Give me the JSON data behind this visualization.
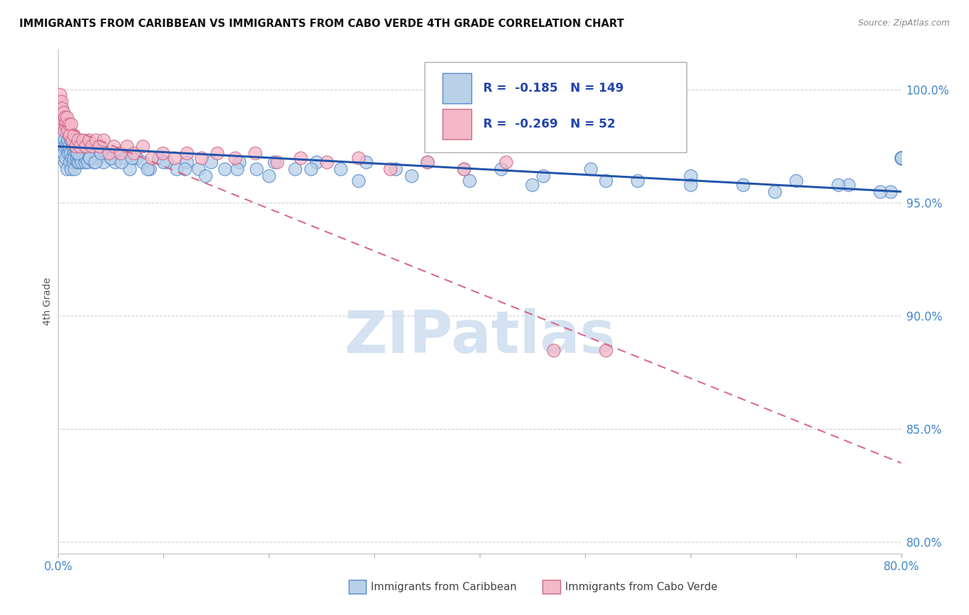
{
  "title": "IMMIGRANTS FROM CARIBBEAN VS IMMIGRANTS FROM CABO VERDE 4TH GRADE CORRELATION CHART",
  "source": "Source: ZipAtlas.com",
  "ylabel": "4th Grade",
  "xlabel_ticks": [
    "0.0%",
    "",
    "",
    "",
    "",
    "",
    "",
    "",
    "80.0%"
  ],
  "xlabel_vals": [
    0.0,
    10.0,
    20.0,
    30.0,
    40.0,
    50.0,
    60.0,
    70.0,
    80.0
  ],
  "ylabel_ticks": [
    "100.0%",
    "95.0%",
    "90.0%",
    "85.0%",
    "80.0%"
  ],
  "ylabel_vals": [
    100.0,
    95.0,
    90.0,
    85.0,
    80.0
  ],
  "xmin": 0.0,
  "xmax": 80.0,
  "ymin": 79.5,
  "ymax": 101.8,
  "legend_labels": [
    "Immigrants from Caribbean",
    "Immigrants from Cabo Verde"
  ],
  "legend_R": [
    -0.185,
    -0.269
  ],
  "legend_N": [
    149,
    52
  ],
  "blue_fill": "#b8d0e8",
  "blue_edge": "#5588cc",
  "pink_fill": "#f4b8c8",
  "pink_edge": "#cc6688",
  "blue_line_color": "#2255aa",
  "pink_line_color": "#dd6688",
  "watermark_text": "ZIPatlas",
  "watermark_color": "#d0dff0",
  "caribbean_x": [
    0.2,
    0.3,
    0.4,
    0.5,
    0.55,
    0.6,
    0.65,
    0.7,
    0.75,
    0.8,
    0.85,
    0.9,
    0.95,
    1.0,
    1.05,
    1.1,
    1.15,
    1.2,
    1.25,
    1.3,
    1.35,
    1.4,
    1.45,
    1.5,
    1.55,
    1.6,
    1.65,
    1.7,
    1.75,
    1.8,
    1.85,
    1.9,
    1.95,
    2.0,
    2.1,
    2.2,
    2.3,
    2.4,
    2.5,
    2.6,
    2.7,
    2.8,
    2.9,
    3.0,
    3.2,
    3.4,
    3.6,
    3.8,
    4.0,
    4.3,
    4.6,
    5.0,
    5.4,
    5.8,
    6.3,
    6.8,
    7.4,
    8.0,
    8.7,
    9.5,
    10.3,
    11.2,
    12.2,
    13.3,
    14.5,
    15.8,
    17.2,
    18.8,
    20.5,
    22.5,
    24.5,
    26.8,
    29.2,
    32.0,
    35.0,
    38.5,
    42.0,
    46.0,
    50.5,
    55.0,
    60.0,
    65.0,
    70.0,
    75.0,
    79.0,
    1.0,
    1.2,
    1.4,
    1.6,
    1.8,
    2.0,
    2.5,
    3.0,
    3.5,
    4.0,
    5.0,
    6.0,
    7.0,
    8.5,
    10.0,
    12.0,
    14.0,
    17.0,
    20.0,
    24.0,
    28.5,
    33.5,
    39.0,
    45.0,
    52.0,
    60.0,
    68.0,
    74.0,
    78.0,
    80.0,
    80.0,
    80.0,
    80.0,
    80.0,
    80.0,
    80.0,
    80.0,
    80.0,
    80.0,
    80.0,
    80.0,
    80.0,
    80.0,
    80.0,
    80.0,
    80.0,
    80.0,
    80.0,
    80.0,
    80.0,
    80.0,
    80.0,
    80.0,
    80.0,
    80.0,
    80.0,
    80.0,
    80.0,
    80.0
  ],
  "caribbean_y": [
    97.8,
    97.5,
    98.0,
    97.2,
    97.8,
    96.8,
    97.5,
    97.0,
    98.2,
    97.5,
    96.5,
    97.8,
    97.2,
    98.0,
    97.5,
    96.8,
    97.2,
    96.5,
    97.8,
    97.0,
    97.5,
    96.8,
    97.2,
    97.0,
    96.5,
    97.8,
    97.2,
    97.5,
    97.0,
    96.8,
    97.2,
    97.5,
    96.8,
    97.2,
    97.0,
    96.8,
    97.2,
    97.5,
    96.8,
    97.0,
    97.5,
    96.8,
    97.2,
    97.0,
    97.5,
    96.8,
    97.2,
    97.0,
    97.5,
    96.8,
    97.2,
    97.0,
    96.8,
    97.2,
    97.0,
    96.5,
    97.0,
    96.8,
    96.5,
    97.0,
    96.8,
    96.5,
    96.8,
    96.5,
    96.8,
    96.5,
    96.8,
    96.5,
    96.8,
    96.5,
    96.8,
    96.5,
    96.8,
    96.5,
    96.8,
    96.5,
    96.5,
    96.2,
    96.5,
    96.0,
    96.2,
    95.8,
    96.0,
    95.8,
    95.5,
    98.2,
    97.8,
    98.0,
    97.5,
    97.2,
    97.8,
    97.5,
    97.0,
    96.8,
    97.2,
    97.0,
    96.8,
    97.0,
    96.5,
    96.8,
    96.5,
    96.2,
    96.5,
    96.2,
    96.5,
    96.0,
    96.2,
    96.0,
    95.8,
    96.0,
    95.8,
    95.5,
    95.8,
    95.5,
    97.0,
    97.0,
    97.0,
    97.0,
    97.0,
    97.0,
    97.0,
    97.0,
    97.0,
    97.0,
    97.0,
    97.0,
    97.0,
    97.0,
    97.0,
    97.0,
    97.0,
    97.0,
    97.0,
    97.0,
    97.0,
    97.0,
    97.0,
    97.0,
    97.0,
    97.0,
    97.0,
    97.0,
    97.0,
    97.0
  ],
  "caboverde_x": [
    0.1,
    0.2,
    0.25,
    0.3,
    0.35,
    0.4,
    0.45,
    0.5,
    0.55,
    0.6,
    0.7,
    0.8,
    0.9,
    1.0,
    1.1,
    1.2,
    1.35,
    1.5,
    1.7,
    1.9,
    2.1,
    2.35,
    2.6,
    2.9,
    3.2,
    3.55,
    3.9,
    4.3,
    4.8,
    5.3,
    5.9,
    6.5,
    7.2,
    8.0,
    8.9,
    9.9,
    11.0,
    12.2,
    13.6,
    15.1,
    16.8,
    18.7,
    20.8,
    23.0,
    25.5,
    28.5,
    31.5,
    35.0,
    38.5,
    42.5,
    47.0,
    52.0
  ],
  "caboverde_y": [
    99.5,
    99.8,
    99.2,
    99.5,
    98.8,
    99.2,
    98.5,
    99.0,
    98.2,
    98.8,
    98.5,
    98.8,
    98.2,
    98.5,
    98.0,
    98.5,
    97.8,
    98.0,
    97.5,
    97.8,
    97.5,
    97.8,
    97.5,
    97.8,
    97.5,
    97.8,
    97.5,
    97.8,
    97.2,
    97.5,
    97.2,
    97.5,
    97.2,
    97.5,
    97.0,
    97.2,
    97.0,
    97.2,
    97.0,
    97.2,
    97.0,
    97.2,
    96.8,
    97.0,
    96.8,
    97.0,
    96.5,
    96.8,
    96.5,
    96.8,
    88.5,
    88.5
  ]
}
